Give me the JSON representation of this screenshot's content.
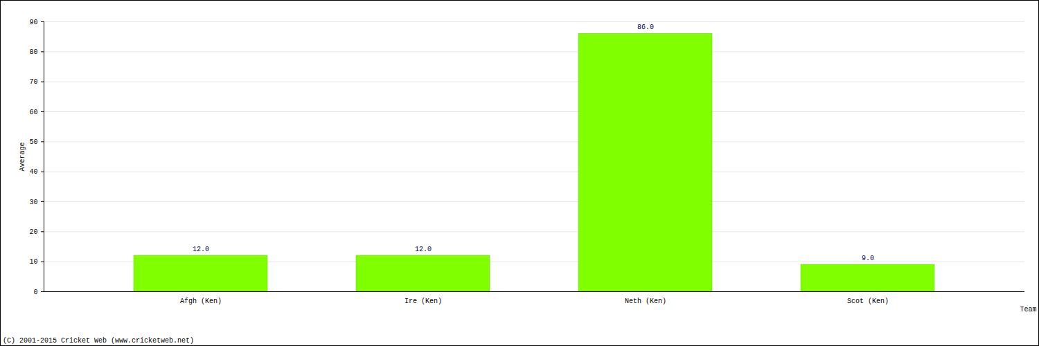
{
  "chart_data": {
    "type": "bar",
    "categories": [
      "Afgh (Ken)",
      "Ire (Ken)",
      "Neth (Ken)",
      "Scot (Ken)"
    ],
    "values": [
      12,
      12,
      86,
      9
    ],
    "value_labels": [
      "12.0",
      "12.0",
      "86.0",
      "9.0"
    ],
    "data_labels": true,
    "color": "#80ff00",
    "xlabel": "Team",
    "ylabel": "Average",
    "ylim": [
      0,
      90
    ],
    "yticks": [
      0,
      10,
      20,
      30,
      40,
      50,
      60,
      70,
      80,
      90
    ],
    "grid": true,
    "caption": "(C) 2001-2015 Cricket Web (www.cricketweb.net)"
  }
}
